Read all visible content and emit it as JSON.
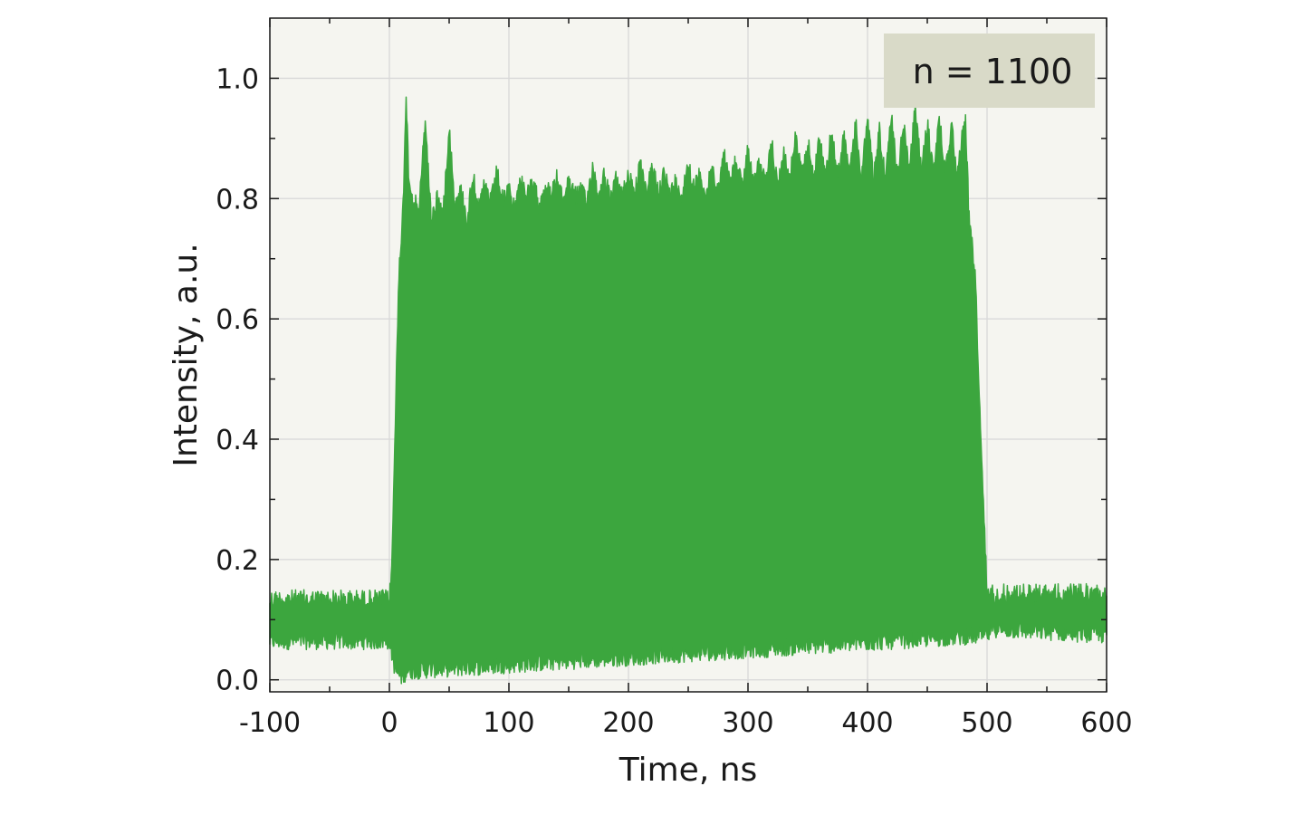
{
  "chart_data": {
    "type": "area",
    "xlabel": "Time, ns",
    "ylabel": "Intensity, a.u.",
    "xlim": [
      -100,
      600
    ],
    "ylim": [
      -0.02,
      1.1
    ],
    "xticks": [
      -100,
      0,
      100,
      200,
      300,
      400,
      500,
      600
    ],
    "yticks": [
      0.0,
      0.2,
      0.4,
      0.6,
      0.8,
      1.0
    ],
    "ytick_labels": [
      "0.0",
      "0.2",
      "0.4",
      "0.6",
      "0.8",
      "1.0"
    ],
    "grid": true,
    "annotation": "n = 1100",
    "annotation_position": "top-right",
    "colors": {
      "signal": "#3ca63e",
      "plot_background": "#f5f5f0",
      "grid": "#d8d8d8",
      "annotation_box": "#d9dac8"
    },
    "series": [
      {
        "baseline_band": {
          "x": [
            -100,
            0
          ],
          "low": 0.05,
          "high": 0.15
        },
        "envelope_upper": {
          "x": [
            -100,
            0,
            2,
            5,
            8,
            12,
            14,
            16,
            20,
            25,
            30,
            35,
            40,
            45,
            50,
            55,
            60,
            65,
            70,
            75,
            80,
            85,
            90,
            95,
            100,
            105,
            110,
            115,
            120,
            125,
            130,
            135,
            140,
            145,
            150,
            155,
            160,
            165,
            170,
            175,
            180,
            185,
            190,
            195,
            200,
            205,
            210,
            215,
            220,
            225,
            230,
            235,
            240,
            245,
            250,
            255,
            260,
            265,
            270,
            275,
            280,
            285,
            290,
            295,
            300,
            305,
            310,
            315,
            320,
            325,
            330,
            335,
            340,
            345,
            350,
            355,
            360,
            365,
            370,
            375,
            380,
            385,
            390,
            395,
            400,
            405,
            410,
            415,
            420,
            425,
            430,
            435,
            440,
            445,
            450,
            455,
            460,
            465,
            470,
            475,
            480,
            482,
            485,
            490,
            495,
            500,
            600
          ],
          "y": [
            0.15,
            0.15,
            0.2,
            0.45,
            0.7,
            0.82,
            1.0,
            0.86,
            0.81,
            0.8,
            0.95,
            0.78,
            0.82,
            0.79,
            0.94,
            0.8,
            0.83,
            0.78,
            0.86,
            0.8,
            0.84,
            0.81,
            0.86,
            0.81,
            0.83,
            0.8,
            0.85,
            0.82,
            0.84,
            0.81,
            0.84,
            0.82,
            0.85,
            0.81,
            0.85,
            0.82,
            0.83,
            0.81,
            0.87,
            0.82,
            0.86,
            0.81,
            0.85,
            0.82,
            0.86,
            0.83,
            0.87,
            0.82,
            0.87,
            0.83,
            0.86,
            0.82,
            0.85,
            0.82,
            0.88,
            0.83,
            0.86,
            0.82,
            0.87,
            0.83,
            0.89,
            0.84,
            0.88,
            0.84,
            0.9,
            0.84,
            0.88,
            0.84,
            0.91,
            0.84,
            0.89,
            0.85,
            0.92,
            0.85,
            0.91,
            0.85,
            0.92,
            0.85,
            0.93,
            0.85,
            0.92,
            0.85,
            0.94,
            0.85,
            0.95,
            0.85,
            0.93,
            0.85,
            0.95,
            0.85,
            0.94,
            0.86,
            0.97,
            0.86,
            0.94,
            0.86,
            0.95,
            0.86,
            0.94,
            0.86,
            0.93,
            0.95,
            0.78,
            0.7,
            0.4,
            0.16,
            0.16
          ]
        },
        "envelope_lower": {
          "x": [
            -100,
            0,
            5,
            10,
            15,
            500,
            505,
            600
          ],
          "y": [
            0.05,
            0.05,
            0.0,
            -0.01,
            0.0,
            0.06,
            0.07,
            0.06
          ]
        }
      }
    ]
  }
}
